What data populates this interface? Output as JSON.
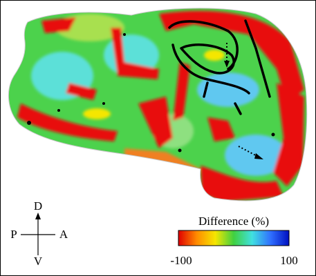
{
  "figure": {
    "compass": {
      "up": "D",
      "down": "V",
      "left": "P",
      "right": "A"
    },
    "colorbar": {
      "label": "Difference (%)",
      "min": -100,
      "max": 100,
      "colors": [
        "#e00000",
        "#ff8c00",
        "#f5e600",
        "#40d040",
        "#40e0e0",
        "#3070ff",
        "#0010c0"
      ]
    }
  }
}
